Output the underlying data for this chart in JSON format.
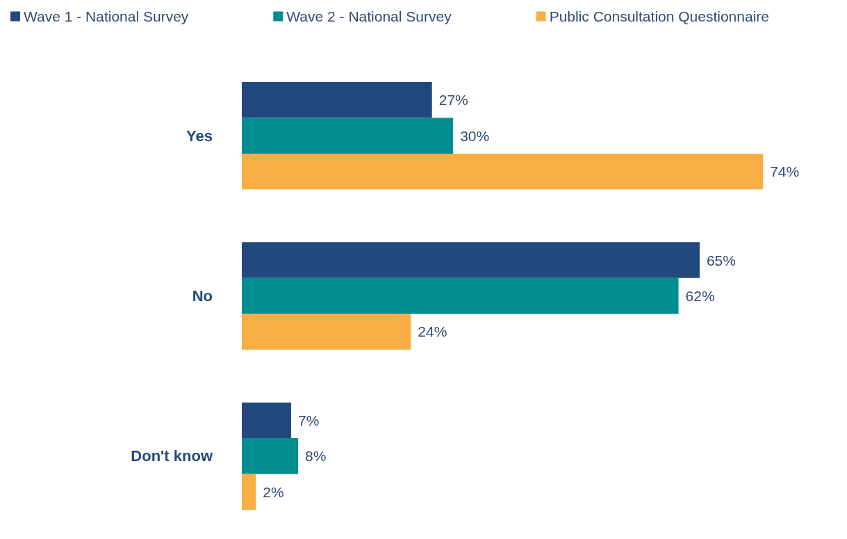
{
  "chart_data": {
    "type": "bar",
    "orientation": "horizontal",
    "categories": [
      "Yes",
      "No",
      "Don't know"
    ],
    "series": [
      {
        "name": "Wave 1 - National Survey",
        "color": "#22497d",
        "values": [
          27,
          65,
          7
        ],
        "value_labels": [
          "27%",
          "65%",
          "7%"
        ]
      },
      {
        "name": "Wave 2 - National Survey",
        "color": "#008d8f",
        "values": [
          30,
          62,
          8
        ],
        "value_labels": [
          "30%",
          "62%",
          "8%"
        ]
      },
      {
        "name": "Public Consultation Questionnaire",
        "color": "#f9ae43",
        "values": [
          74,
          24,
          2
        ],
        "value_labels": [
          "74%",
          "24%",
          "2%"
        ]
      }
    ],
    "legend": "top",
    "grid": false,
    "tick_labels": "y"
  }
}
